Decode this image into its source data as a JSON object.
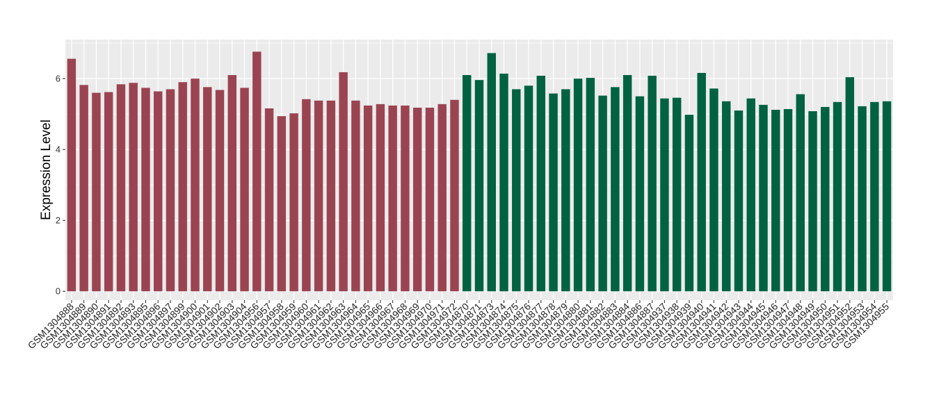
{
  "chart_data": {
    "type": "bar",
    "title": "",
    "xlabel": "",
    "ylabel": "Expression Level",
    "ylim": [
      -0.25,
      7.1
    ],
    "yticks": [
      0,
      2,
      4,
      6
    ],
    "grid": true,
    "legend": "none",
    "categories": [
      "GSM1304888",
      "GSM1304889",
      "GSM1304890",
      "GSM1304891",
      "GSM1304892",
      "GSM1304893",
      "GSM1304895",
      "GSM1304896",
      "GSM1304897",
      "GSM1304899",
      "GSM1304900",
      "GSM1304901",
      "GSM1304902",
      "GSM1304903",
      "GSM1304904",
      "GSM1304956",
      "GSM1304957",
      "GSM1304958",
      "GSM1304959",
      "GSM1304960",
      "GSM1304961",
      "GSM1304962",
      "GSM1304963",
      "GSM1304964",
      "GSM1304965",
      "GSM1304966",
      "GSM1304967",
      "GSM1304968",
      "GSM1304969",
      "GSM1304970",
      "GSM1304971",
      "GSM1304972",
      "GSM1304870",
      "GSM1304871",
      "GSM1304873",
      "GSM1304874",
      "GSM1304875",
      "GSM1304876",
      "GSM1304877",
      "GSM1304878",
      "GSM1304879",
      "GSM1304880",
      "GSM1304881",
      "GSM1304882",
      "GSM1304883",
      "GSM1304884",
      "GSM1304886",
      "GSM1304887",
      "GSM1304937",
      "GSM1304938",
      "GSM1304939",
      "GSM1304940",
      "GSM1304941",
      "GSM1304942",
      "GSM1304943",
      "GSM1304944",
      "GSM1304945",
      "GSM1304946",
      "GSM1304947",
      "GSM1304948",
      "GSM1304949",
      "GSM1304950",
      "GSM1304951",
      "GSM1304952",
      "GSM1304953",
      "GSM1304954",
      "GSM1304955"
    ],
    "values": [
      6.56,
      5.82,
      5.6,
      5.62,
      5.84,
      5.88,
      5.74,
      5.64,
      5.7,
      5.9,
      6.0,
      5.76,
      5.68,
      6.1,
      5.74,
      6.76,
      5.16,
      4.94,
      5.02,
      5.42,
      5.38,
      5.38,
      6.18,
      5.38,
      5.24,
      5.28,
      5.24,
      5.24,
      5.18,
      5.18,
      5.28,
      5.4,
      6.1,
      5.96,
      6.72,
      6.14,
      5.7,
      5.8,
      6.08,
      5.58,
      5.7,
      6.0,
      6.02,
      5.52,
      5.76,
      6.1,
      5.5,
      6.08,
      5.44,
      5.46,
      4.98,
      6.16,
      5.72,
      5.36,
      5.1,
      5.44,
      5.26,
      5.12,
      5.14,
      5.56,
      5.08,
      5.2,
      5.34,
      6.04,
      5.22,
      5.34,
      5.36
    ],
    "bar_colors": {
      "group_1": "#9b4451",
      "group_2": "#006241"
    },
    "group_1_count": 32,
    "panel_background": "#ebebeb",
    "grid_color": "#ffffff"
  }
}
